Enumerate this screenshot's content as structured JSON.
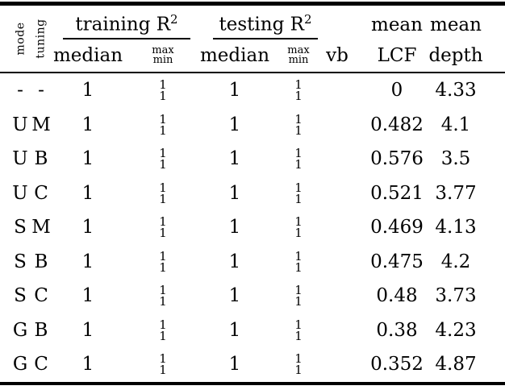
{
  "table": {
    "colors": {
      "text": "#000000",
      "background": "#ffffff",
      "rule": "#000000"
    },
    "header": {
      "mode": "mode",
      "tuning": "tuning",
      "training_group": "training R",
      "training_sup": "2",
      "testing_group": "testing R",
      "testing_sup": "2",
      "train_median": "median",
      "train_max": "max",
      "train_min": "min",
      "test_median": "median",
      "test_max": "max",
      "test_min": "min",
      "vb": "vb",
      "mean_lcf_top": "mean",
      "mean_lcf_bottom": "LCF",
      "mean_depth_top": "mean",
      "mean_depth_bottom": "depth"
    },
    "rows": [
      {
        "mode": "-",
        "tuning": "-",
        "train_median": "1",
        "train_max": "1",
        "train_min": "1",
        "test_median": "1",
        "test_max": "1",
        "test_min": "1",
        "vb": "",
        "lcf": "0",
        "depth": "4.33"
      },
      {
        "mode": "U",
        "tuning": "M",
        "train_median": "1",
        "train_max": "1",
        "train_min": "1",
        "test_median": "1",
        "test_max": "1",
        "test_min": "1",
        "vb": "",
        "lcf": "0.482",
        "depth": "4.1"
      },
      {
        "mode": "U",
        "tuning": "B",
        "train_median": "1",
        "train_max": "1",
        "train_min": "1",
        "test_median": "1",
        "test_max": "1",
        "test_min": "1",
        "vb": "",
        "lcf": "0.576",
        "depth": "3.5"
      },
      {
        "mode": "U",
        "tuning": "C",
        "train_median": "1",
        "train_max": "1",
        "train_min": "1",
        "test_median": "1",
        "test_max": "1",
        "test_min": "1",
        "vb": "",
        "lcf": "0.521",
        "depth": "3.77"
      },
      {
        "mode": "S",
        "tuning": "M",
        "train_median": "1",
        "train_max": "1",
        "train_min": "1",
        "test_median": "1",
        "test_max": "1",
        "test_min": "1",
        "vb": "",
        "lcf": "0.469",
        "depth": "4.13"
      },
      {
        "mode": "S",
        "tuning": "B",
        "train_median": "1",
        "train_max": "1",
        "train_min": "1",
        "test_median": "1",
        "test_max": "1",
        "test_min": "1",
        "vb": "",
        "lcf": "0.475",
        "depth": "4.2"
      },
      {
        "mode": "S",
        "tuning": "C",
        "train_median": "1",
        "train_max": "1",
        "train_min": "1",
        "test_median": "1",
        "test_max": "1",
        "test_min": "1",
        "vb": "",
        "lcf": "0.48",
        "depth": "3.73"
      },
      {
        "mode": "G",
        "tuning": "B",
        "train_median": "1",
        "train_max": "1",
        "train_min": "1",
        "test_median": "1",
        "test_max": "1",
        "test_min": "1",
        "vb": "",
        "lcf": "0.38",
        "depth": "4.23"
      },
      {
        "mode": "G",
        "tuning": "C",
        "train_median": "1",
        "train_max": "1",
        "train_min": "1",
        "test_median": "1",
        "test_max": "1",
        "test_min": "1",
        "vb": "",
        "lcf": "0.352",
        "depth": "4.87"
      }
    ]
  }
}
